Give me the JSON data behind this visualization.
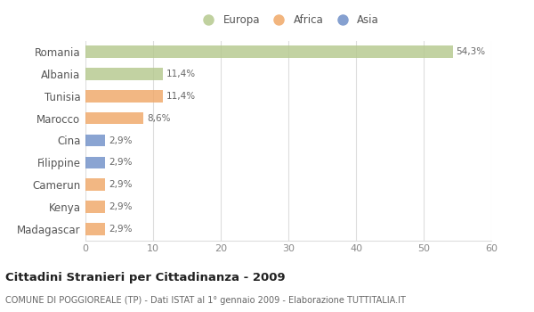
{
  "categories": [
    "Romania",
    "Albania",
    "Tunisia",
    "Marocco",
    "Cina",
    "Filippine",
    "Camerun",
    "Kenya",
    "Madagascar"
  ],
  "values": [
    54.3,
    11.4,
    11.4,
    8.6,
    2.9,
    2.9,
    2.9,
    2.9,
    2.9
  ],
  "labels": [
    "54,3%",
    "11,4%",
    "11,4%",
    "8,6%",
    "2,9%",
    "2,9%",
    "2,9%",
    "2,9%",
    "2,9%"
  ],
  "colors": [
    "#b5c98e",
    "#b5c98e",
    "#f0a868",
    "#f0a868",
    "#7090c8",
    "#7090c8",
    "#f0a868",
    "#f0a868",
    "#f0a868"
  ],
  "legend_labels": [
    "Europa",
    "Africa",
    "Asia"
  ],
  "legend_colors": [
    "#b5c98e",
    "#f0a868",
    "#7090c8"
  ],
  "xlim": [
    0,
    60
  ],
  "xticks": [
    0,
    10,
    20,
    30,
    40,
    50,
    60
  ],
  "title": "Cittadini Stranieri per Cittadinanza - 2009",
  "subtitle": "COMUNE DI POGGIOREALE (TP) - Dati ISTAT al 1° gennaio 2009 - Elaborazione TUTTITALIA.IT",
  "background_color": "#ffffff",
  "grid_color": "#dddddd",
  "bar_height": 0.55,
  "figsize": [
    6.0,
    3.5
  ],
  "dpi": 100
}
